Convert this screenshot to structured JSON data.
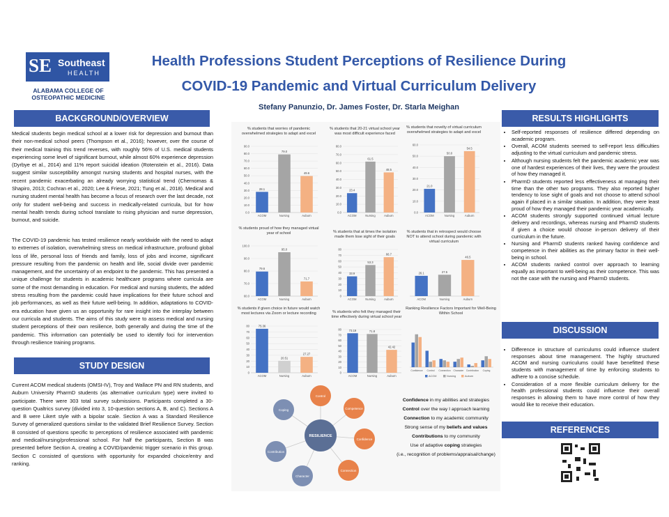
{
  "header": {
    "logo_mark": "SE",
    "logo_name": "Southeast",
    "logo_sub": "HEALTH",
    "college": [
      "ALABAMA COLLEGE OF",
      "OSTEOPATHIC MEDICINE"
    ],
    "title": [
      "Health Professions Student Perceptions of Resilience During",
      "COVID-19 Pandemic and Virtual Curriculum Delivery"
    ],
    "authors": "Stefany Panunzio, Dr. James Foster, Dr. Starla Meighan"
  },
  "background": {
    "heading": "BACKGROUND/OVERVIEW",
    "paragraphs": [
      "Medical students begin medical school at a lower risk for depression and burnout than their non-medical school peers (Thompson et al., 2016); however, over the course of their medical training this trend reverses, with roughly 56% of U.S. medical students experiencing some level of significant burnout, while almost 60% experience depression (Dyrbye et al., 2014) and 11% report suicidal ideation (Rotenstein et al., 2016). Data suggest similar susceptibility amongst nursing students and hospital nurses, with the recent pandemic exacerbating an already worrying statistical trend (Chernomas & Shapiro, 2013; Cochran et al., 2020; Lee & Friese, 2021; Tung et al., 2018). Medical and nursing student mental health has become a focus of research over the last decade, not only for student well-being and success in medically-related curricula, but for how mental health trends during school translate to rising physician and nurse depression, burnout, and suicide.",
      "The COVID-19 pandemic has tested resilience nearly worldwide with the need to adapt to extremes of isolation, overwhelming stress on medical infrastructure, profound global loss of life, personal loss of friends and family, loss of jobs and income, significant pressure resulting from the pandemic on health and life, social divide over pandemic management, and the uncertainty of an endpoint to the pandemic. This has presented a unique challenge for students in academic healthcare programs where curricula are some of the most demanding in education. For medical and nursing students, the added stress resulting from the pandemic could have implications for their future school and job performances, as well as their future well-being. In addition, adaptations to COVID-era education have given us an opportunity for rare insight into the interplay between our curricula and students. The aims of this study were to assess medical and nursing student perceptions of their own resilience, both generally and during the time of the pandemic. This information can potentially be used to identify foci for intervention through resilience training programs."
    ]
  },
  "study_design": {
    "heading": "STUDY DESIGN",
    "text": "Current ACOM medical students (OMSI-IV), Troy and Wallace PN and RN students, and Auburn University PharmD students (as alternative curriculum type) were invited to participate. There were 303 total survey submissions. Participants completed a 30-question Qualtrics survey (divided into 3, 10-question sections A, B, and C). Sections A and B were Likert style with a bipolar scale. Section A was a Standard Resilience Survey of generalized questions similar to the validated Brief Resilience Survey. Section B consisted of questions specific to perceptions of resilience associated with pandemic and medical/nursing/professional school. For half the participants, Section B was presented before Section A, creating a COVID/pandemic trigger scenario in this group. Section C consisted of questions with opportunity for expanded choice/entry and ranking."
  },
  "results": {
    "heading": "RESULTS HIGHLIGHTS",
    "bullets": [
      "Self-reported responses of resilience differed depending on academic program.",
      "Overall, ACOM students seemed to self-report less difficulties adjusting to the virtual curriculum and pandemic stress.",
      "Although nursing students felt the pandemic academic year was one of hardest experiences of their lives, they were the proudest of how they managed it.",
      "PharmD students reported less effectiveness at managing their time than the other two programs. They also reported higher tendency to lose sight of goals and not choose to attend school again if placed in a similar situation. In addition, they were least proud of how they managed their pandemic year academically.",
      "ACOM students strongly supported continued virtual lecture delivery and recordings, whereas nursing and PharmD students if given a choice would choose in-person delivery of their curriculum in the future.",
      "Nursing and PharmD students ranked having confidence and competence in their abilities as the primary factor in their well-being in school.",
      "ACOM students ranked control over approach to learning equally as important to well-being as their competence. This was not the case with the nursing and PharmD students."
    ]
  },
  "discussion": {
    "heading": "DISCUSSION",
    "bullets": [
      "Difference in structure of curriculums could influence student responses about time management. The highly structured ACOM and nursing curriculums could have benefitted these students with management of time by enforcing students to adhere to a concise schedule.",
      "Consideration of a more flexible curriculum delivery for the health professional students could influence their overall responses in allowing them to have more control of how they would like to receive their education."
    ]
  },
  "references": {
    "heading": "REFERENCES"
  },
  "resilience_diagram": {
    "center": "RESILIENCE",
    "nodes": [
      "Control",
      "Competence",
      "Confidence",
      "Connection",
      "Character",
      "Contribution",
      "Coping"
    ]
  },
  "resilience_list": [
    [
      {
        "t": "Confidence",
        "b": true
      },
      {
        "t": " in my abilities and strategies",
        "b": false
      }
    ],
    [
      {
        "t": "Control",
        "b": true
      },
      {
        "t": " over the way I approach learning",
        "b": false
      }
    ],
    [
      {
        "t": "Connection",
        "b": true
      },
      {
        "t": " to my academic community",
        "b": false
      }
    ],
    [
      {
        "t": "Strong sense of my ",
        "b": false
      },
      {
        "t": "beliefs and values",
        "b": true
      }
    ],
    [
      {
        "t": "Contributions",
        "b": true
      },
      {
        "t": " to my community",
        "b": false
      }
    ],
    [
      {
        "t": "Use of adaptive ",
        "b": false
      },
      {
        "t": "coping",
        "b": true
      },
      {
        "t": " strategies",
        "b": false
      }
    ],
    [
      {
        "t": "(i.e., recognition of problems/appraisal/change)",
        "b": false
      }
    ]
  ],
  "chart_data": [
    {
      "type": "bar",
      "title": "% students that worries of pandemic overwhelmed strategies to adapt and excel",
      "categories": [
        "ACOM",
        "Nursing",
        "Auburn"
      ],
      "values": [
        28.1,
        79,
        49.6
      ],
      "value_labels": [
        "28.1",
        "79.0",
        "49.6"
      ],
      "colors": [
        "#4472c4",
        "#a5a5a5",
        "#f4b183"
      ],
      "ylim": [
        0,
        90
      ],
      "yticks": [
        {
          "value": 0,
          "label": "0.0"
        },
        {
          "value": 10,
          "label": "10.0"
        },
        {
          "value": 20,
          "label": "20.0"
        },
        {
          "value": 30,
          "label": "30.0"
        },
        {
          "value": 40,
          "label": "40.0"
        },
        {
          "value": 50,
          "label": "50.0"
        },
        {
          "value": 60,
          "label": "60.0"
        },
        {
          "value": 70,
          "label": "70.0"
        },
        {
          "value": 80,
          "label": "80.0"
        },
        {
          "value": 90,
          "label": "90.0"
        }
      ]
    },
    {
      "type": "bar",
      "title": "% students that 20-21 virtual school year was most difficult experience faced",
      "categories": [
        "ACOM",
        "Nursing",
        "Auburn"
      ],
      "values": [
        23.4,
        61.5,
        48.5
      ],
      "colors": [
        "#4472c4",
        "#a5a5a5",
        "#f4b183"
      ],
      "ylim": [
        0,
        80
      ],
      "yticks": [
        {
          "value": 0,
          "label": "0.0"
        },
        {
          "value": 10,
          "label": "10.0"
        },
        {
          "value": 20,
          "label": "20.0"
        },
        {
          "value": 30,
          "label": "30.0"
        },
        {
          "value": 40,
          "label": "40.0"
        },
        {
          "value": 50,
          "label": "50.0"
        },
        {
          "value": 60,
          "label": "60.0"
        },
        {
          "value": 70,
          "label": "70.0"
        },
        {
          "value": 80,
          "label": "80.0"
        }
      ]
    },
    {
      "type": "bar",
      "title": "% students that novelty of virtual curriculum overwhelmed strategies to adapt and excel",
      "categories": [
        "ACOM",
        "Nursing",
        "Auburn"
      ],
      "values": [
        21,
        50,
        54.5
      ],
      "value_labels": [
        "21.0",
        "50.0",
        "54.5"
      ],
      "colors": [
        "#4472c4",
        "#a5a5a5",
        "#f4b183"
      ],
      "ylim": [
        0,
        60
      ],
      "yticks": [
        {
          "value": 0,
          "label": "0.0"
        },
        {
          "value": 10,
          "label": "10.0"
        },
        {
          "value": 20,
          "label": "20.0"
        },
        {
          "value": 30,
          "label": "30.0"
        },
        {
          "value": 40,
          "label": "40.0"
        },
        {
          "value": 50,
          "label": "50.0"
        },
        {
          "value": 60,
          "label": "60.0"
        }
      ]
    },
    {
      "type": "bar",
      "title": "% students proud of how they managed virtual year of school",
      "categories": [
        "ACOM",
        "Nursing",
        "Auburn"
      ],
      "values": [
        79.6,
        95,
        71.7
      ],
      "value_labels": [
        "79.6",
        "95.0",
        "71.7"
      ],
      "colors": [
        "#4472c4",
        "#a5a5a5",
        "#f4b183"
      ],
      "ylim": [
        60,
        100
      ],
      "yticks": [
        {
          "value": 60,
          "label": "60.0"
        },
        {
          "value": 70,
          "label": "70.0"
        },
        {
          "value": 80,
          "label": "80.0"
        },
        {
          "value": 90,
          "label": "90.0"
        },
        {
          "value": 100,
          "label": "100.0"
        }
      ]
    },
    {
      "type": "bar",
      "title": "% students that at times the isolation made them lose sight of their goals",
      "categories": [
        "ACOM",
        "Nursing",
        "Auburn"
      ],
      "values": [
        33.9,
        53.3,
        66.7
      ],
      "colors": [
        "#4472c4",
        "#a5a5a5",
        "#f4b183"
      ],
      "ylim": [
        0,
        80
      ],
      "yticks": [
        0,
        10,
        20,
        30,
        40,
        50,
        60,
        70,
        80
      ]
    },
    {
      "type": "bar",
      "title": "% students that in retrospect would choose NOT to attend school during pandemic with virtual curriculum",
      "categories": [
        "ACOM",
        "Nursing",
        "Auburn"
      ],
      "values": [
        26.1,
        27.5,
        46.5
      ],
      "colors": [
        "#4472c4",
        "#a5a5a5",
        "#f4b183"
      ],
      "ylim": [
        0,
        60
      ]
    },
    {
      "type": "bar",
      "title": "% students if given choice in future would watch most lectures via Zoom or lecture recording",
      "categories": [
        "ACOM",
        "Nursing",
        "Auburn"
      ],
      "values": [
        75.36,
        20.51,
        27.27
      ],
      "colors": [
        "#4472c4",
        "#d0d0d0",
        "#f4b183"
      ],
      "ylim": [
        0,
        80
      ],
      "yticks": [
        0,
        10,
        20,
        30,
        40,
        50,
        60,
        70,
        80
      ]
    },
    {
      "type": "bar",
      "title": "% students who felt they managed their time effectively during virtual school year",
      "categories": [
        "ACOM",
        "Nursing",
        "Auburn"
      ],
      "values": [
        73.19,
        71.8,
        42.42
      ],
      "colors": [
        "#4472c4",
        "#a5a5a5",
        "#f4b183"
      ],
      "ylim": [
        0,
        80
      ],
      "yticks": [
        0,
        10,
        20,
        30,
        40,
        50,
        60,
        70,
        80
      ]
    },
    {
      "type": "grouped-bar",
      "title": "Ranking Resilience Factors Important for Well-Being Within School",
      "categories": [
        "Confidence",
        "Control",
        "Connection",
        "Character",
        "Contribution",
        "Coping"
      ],
      "ylim": [
        0,
        30
      ],
      "series": [
        {
          "name": "ACOM",
          "color": "#4472c4",
          "values": [
            18,
            12,
            6,
            4,
            2,
            5
          ]
        },
        {
          "name": "Nursing",
          "color": "#a5a5a5",
          "values": [
            24,
            4,
            5,
            6,
            1,
            8
          ]
        },
        {
          "name": "Auburn",
          "color": "#f4b183",
          "values": [
            22,
            5,
            4,
            7,
            3,
            6
          ]
        }
      ]
    }
  ]
}
